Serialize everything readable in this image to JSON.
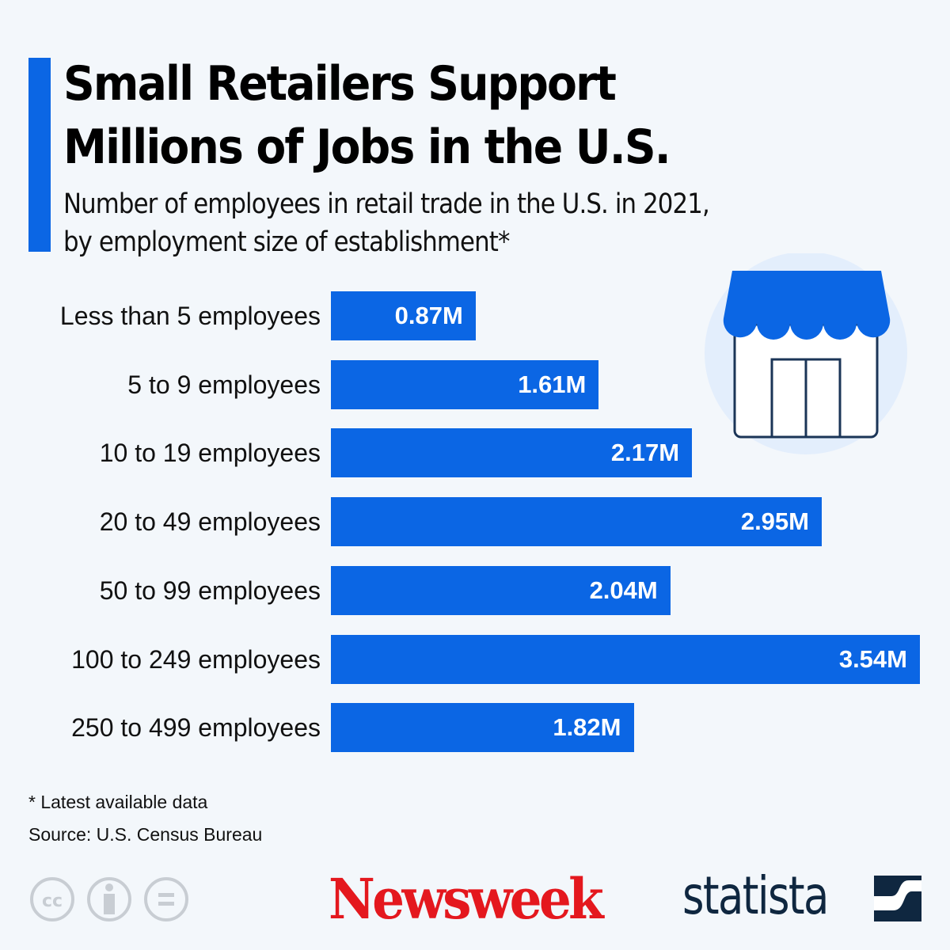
{
  "header": {
    "title": "Small Retailers Support Millions of Jobs in the U.S.",
    "subtitle_line1": "Number of employees in retail trade in the U.S. in 2021,",
    "subtitle_line2": "by employment size of establishment*"
  },
  "chart_data": {
    "type": "bar",
    "orientation": "horizontal",
    "title": "Small Retailers Support Millions of Jobs in the U.S.",
    "subtitle": "Number of employees in retail trade in the U.S. in 2021, by employment size of establishment*",
    "categories": [
      "Less than 5 employees",
      "5 to 9 employees",
      "10 to 19 employees",
      "20 to 49 employees",
      "50 to 99 employees",
      "100 to 249 employees",
      "250 to 499 employees"
    ],
    "values": [
      0.87,
      1.61,
      2.17,
      2.95,
      2.04,
      3.54,
      1.82
    ],
    "value_labels": [
      "0.87M",
      "1.61M",
      "2.17M",
      "2.95M",
      "2.04M",
      "3.54M",
      "1.82M"
    ],
    "unit": "million employees",
    "xlim": [
      0,
      3.54
    ],
    "grid": false,
    "bar_color": "#0b66e4"
  },
  "footer": {
    "note": "* Latest available data",
    "source": "Source: U.S. Census Bureau",
    "license_icons": [
      "cc-icon",
      "attribution-icon",
      "no-derivatives-icon"
    ],
    "logo_newsweek": "Newsweek",
    "logo_statista": "statista"
  },
  "colors": {
    "accent": "#0b66e4",
    "background": "#f3f7fb",
    "newsweek_red": "#e4181e",
    "statista_navy": "#0f2740"
  }
}
